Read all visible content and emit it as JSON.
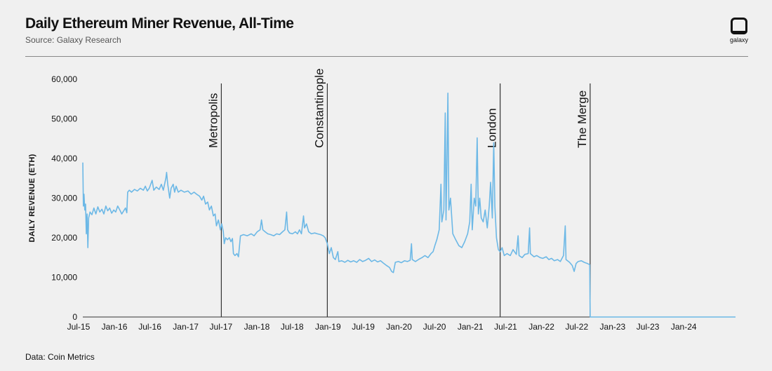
{
  "header": {
    "title": "Daily Ethereum Miner Revenue, All-Time",
    "source": "Source: Galaxy Research"
  },
  "logo": {
    "text": "galaxy"
  },
  "footer": {
    "text": "Data: Coin Metrics"
  },
  "colors": {
    "series": "#6cb8e6",
    "axis": "#333333",
    "background": "#f0f0f0"
  },
  "chart_data": {
    "type": "line",
    "title": "Daily Ethereum Miner Revenue, All-Time",
    "ylabel": "DAILY REVENUE (ETH)",
    "xlabel": "",
    "ylim": [
      0,
      60000
    ],
    "xlim": [
      "2015-07-30",
      "2024-09-30"
    ],
    "y_ticks": [
      "0",
      "10,000",
      "20,000",
      "30,000",
      "40,000",
      "50,000",
      "60,000"
    ],
    "x_ticks": [
      "Jul-15",
      "Jan-16",
      "Jul-16",
      "Jan-17",
      "Jul-17",
      "Jan-18",
      "Jul-18",
      "Jan-19",
      "Jul-19",
      "Jan-20",
      "Jul-20",
      "Jan-21",
      "Jul-21",
      "Jan-22",
      "Jul-22",
      "Jan-23",
      "Jul-23",
      "Jan-24"
    ],
    "grid": false,
    "events": [
      {
        "label": "Metropolis",
        "date": "2017-07-10"
      },
      {
        "label": "Constantinople",
        "date": "2019-01-05"
      },
      {
        "label": "London",
        "date": "2021-06-10"
      },
      {
        "label": "The Merge",
        "date": "2022-09-15"
      }
    ],
    "series": [
      {
        "name": "Daily Revenue (ETH)",
        "points": [
          [
            "2015-07-30",
            39000
          ],
          [
            "2015-08-02",
            28000
          ],
          [
            "2015-08-05",
            31000
          ],
          [
            "2015-08-09",
            27000
          ],
          [
            "2015-08-13",
            28500
          ],
          [
            "2015-08-17",
            21000
          ],
          [
            "2015-08-21",
            26000
          ],
          [
            "2015-08-25",
            17500
          ],
          [
            "2015-08-29",
            25000
          ],
          [
            "2015-09-05",
            26500
          ],
          [
            "2015-09-15",
            25800
          ],
          [
            "2015-09-25",
            27500
          ],
          [
            "2015-10-05",
            26000
          ],
          [
            "2015-10-15",
            27800
          ],
          [
            "2015-10-25",
            26500
          ],
          [
            "2015-11-05",
            27200
          ],
          [
            "2015-11-15",
            26000
          ],
          [
            "2015-11-25",
            28000
          ],
          [
            "2015-12-05",
            26800
          ],
          [
            "2015-12-15",
            27500
          ],
          [
            "2015-12-25",
            26200
          ],
          [
            "2016-01-05",
            27000
          ],
          [
            "2016-01-15",
            26500
          ],
          [
            "2016-01-25",
            28000
          ],
          [
            "2016-02-05",
            27000
          ],
          [
            "2016-02-15",
            26000
          ],
          [
            "2016-02-25",
            26800
          ],
          [
            "2016-03-05",
            27500
          ],
          [
            "2016-03-12",
            26300
          ],
          [
            "2016-03-16",
            31500
          ],
          [
            "2016-03-25",
            32000
          ],
          [
            "2016-04-05",
            31500
          ],
          [
            "2016-04-20",
            32200
          ],
          [
            "2016-05-05",
            31800
          ],
          [
            "2016-05-20",
            32500
          ],
          [
            "2016-06-05",
            32000
          ],
          [
            "2016-06-15",
            33000
          ],
          [
            "2016-06-25",
            31800
          ],
          [
            "2016-07-05",
            32500
          ],
          [
            "2016-07-20",
            34500
          ],
          [
            "2016-07-28",
            32000
          ],
          [
            "2016-08-10",
            32800
          ],
          [
            "2016-08-25",
            32200
          ],
          [
            "2016-09-05",
            33500
          ],
          [
            "2016-09-15",
            32000
          ],
          [
            "2016-09-28",
            35000
          ],
          [
            "2016-10-02",
            36500
          ],
          [
            "2016-10-08",
            33500
          ],
          [
            "2016-10-18",
            30000
          ],
          [
            "2016-10-25",
            32500
          ],
          [
            "2016-11-05",
            33500
          ],
          [
            "2016-11-12",
            31500
          ],
          [
            "2016-11-20",
            33000
          ],
          [
            "2016-12-01",
            31500
          ],
          [
            "2016-12-15",
            32000
          ],
          [
            "2017-01-01",
            31500
          ],
          [
            "2017-01-20",
            31800
          ],
          [
            "2017-02-05",
            31000
          ],
          [
            "2017-02-20",
            31500
          ],
          [
            "2017-03-05",
            31000
          ],
          [
            "2017-03-20",
            30500
          ],
          [
            "2017-04-01",
            29500
          ],
          [
            "2017-04-10",
            30500
          ],
          [
            "2017-04-20",
            28500
          ],
          [
            "2017-05-01",
            29000
          ],
          [
            "2017-05-10",
            27000
          ],
          [
            "2017-05-20",
            28000
          ],
          [
            "2017-05-30",
            25500
          ],
          [
            "2017-06-08",
            26000
          ],
          [
            "2017-06-15",
            23000
          ],
          [
            "2017-06-25",
            24500
          ],
          [
            "2017-07-05",
            22000
          ],
          [
            "2017-07-12",
            23500
          ],
          [
            "2017-07-20",
            21500
          ],
          [
            "2017-07-25",
            18500
          ],
          [
            "2017-08-01",
            20000
          ],
          [
            "2017-08-10",
            19500
          ],
          [
            "2017-08-20",
            20000
          ],
          [
            "2017-08-28",
            19000
          ],
          [
            "2017-09-05",
            19800
          ],
          [
            "2017-09-10",
            16000
          ],
          [
            "2017-09-18",
            15500
          ],
          [
            "2017-09-28",
            16000
          ],
          [
            "2017-10-06",
            15200
          ],
          [
            "2017-10-16",
            20500
          ],
          [
            "2017-11-01",
            20800
          ],
          [
            "2017-11-20",
            20500
          ],
          [
            "2017-12-10",
            21000
          ],
          [
            "2017-12-25",
            20500
          ],
          [
            "2018-01-10",
            21500
          ],
          [
            "2018-01-25",
            22000
          ],
          [
            "2018-02-01",
            24500
          ],
          [
            "2018-02-08",
            22000
          ],
          [
            "2018-02-20",
            21500
          ],
          [
            "2018-03-05",
            21000
          ],
          [
            "2018-03-20",
            20800
          ],
          [
            "2018-04-05",
            20500
          ],
          [
            "2018-04-20",
            21000
          ],
          [
            "2018-05-05",
            20800
          ],
          [
            "2018-05-20",
            21500
          ],
          [
            "2018-06-01",
            22000
          ],
          [
            "2018-06-10",
            26500
          ],
          [
            "2018-06-15",
            22000
          ],
          [
            "2018-06-25",
            21200
          ],
          [
            "2018-07-10",
            21000
          ],
          [
            "2018-07-25",
            21500
          ],
          [
            "2018-08-05",
            21000
          ],
          [
            "2018-08-15",
            22000
          ],
          [
            "2018-08-25",
            21000
          ],
          [
            "2018-09-05",
            25500
          ],
          [
            "2018-09-10",
            22500
          ],
          [
            "2018-09-20",
            23500
          ],
          [
            "2018-10-01",
            21500
          ],
          [
            "2018-10-15",
            21000
          ],
          [
            "2018-11-01",
            21200
          ],
          [
            "2018-11-15",
            21000
          ],
          [
            "2018-12-01",
            20800
          ],
          [
            "2018-12-15",
            20500
          ],
          [
            "2018-12-25",
            20000
          ],
          [
            "2019-01-05",
            18500
          ],
          [
            "2019-01-15",
            16000
          ],
          [
            "2019-01-25",
            17500
          ],
          [
            "2019-02-05",
            15000
          ],
          [
            "2019-02-15",
            14500
          ],
          [
            "2019-02-28",
            16500
          ],
          [
            "2019-03-05",
            14000
          ],
          [
            "2019-03-20",
            14200
          ],
          [
            "2019-04-05",
            13800
          ],
          [
            "2019-04-20",
            14300
          ],
          [
            "2019-05-05",
            13900
          ],
          [
            "2019-05-20",
            14200
          ],
          [
            "2019-06-05",
            13800
          ],
          [
            "2019-06-20",
            14500
          ],
          [
            "2019-07-05",
            14000
          ],
          [
            "2019-07-20",
            14300
          ],
          [
            "2019-08-05",
            14800
          ],
          [
            "2019-08-20",
            14000
          ],
          [
            "2019-09-05",
            14400
          ],
          [
            "2019-09-20",
            13900
          ],
          [
            "2019-10-05",
            14200
          ],
          [
            "2019-10-20",
            13600
          ],
          [
            "2019-11-05",
            13000
          ],
          [
            "2019-11-20",
            12500
          ],
          [
            "2019-12-01",
            11500
          ],
          [
            "2019-12-10",
            11200
          ],
          [
            "2019-12-20",
            13800
          ],
          [
            "2020-01-05",
            14000
          ],
          [
            "2020-01-20",
            13700
          ],
          [
            "2020-02-05",
            14200
          ],
          [
            "2020-02-20",
            14000
          ],
          [
            "2020-03-05",
            14300
          ],
          [
            "2020-03-12",
            18500
          ],
          [
            "2020-03-16",
            14500
          ],
          [
            "2020-04-01",
            14000
          ],
          [
            "2020-04-20",
            14600
          ],
          [
            "2020-05-05",
            15000
          ],
          [
            "2020-05-20",
            15500
          ],
          [
            "2020-06-05",
            15000
          ],
          [
            "2020-06-20",
            16000
          ],
          [
            "2020-07-01",
            16500
          ],
          [
            "2020-07-10",
            18000
          ],
          [
            "2020-07-20",
            19500
          ],
          [
            "2020-08-01",
            22000
          ],
          [
            "2020-08-10",
            33500
          ],
          [
            "2020-08-15",
            24000
          ],
          [
            "2020-08-25",
            27000
          ],
          [
            "2020-09-01",
            51500
          ],
          [
            "2020-09-05",
            24500
          ],
          [
            "2020-09-10",
            40000
          ],
          [
            "2020-09-15",
            56500
          ],
          [
            "2020-09-20",
            27000
          ],
          [
            "2020-09-28",
            30000
          ],
          [
            "2020-10-10",
            21000
          ],
          [
            "2020-10-25",
            19500
          ],
          [
            "2020-11-10",
            18000
          ],
          [
            "2020-11-25",
            17500
          ],
          [
            "2020-12-10",
            19000
          ],
          [
            "2020-12-25",
            21000
          ],
          [
            "2021-01-05",
            24000
          ],
          [
            "2021-01-12",
            33500
          ],
          [
            "2021-01-18",
            22000
          ],
          [
            "2021-01-28",
            30000
          ],
          [
            "2021-02-05",
            28000
          ],
          [
            "2021-02-12",
            45200
          ],
          [
            "2021-02-18",
            26000
          ],
          [
            "2021-02-25",
            30000
          ],
          [
            "2021-03-05",
            25000
          ],
          [
            "2021-03-15",
            24000
          ],
          [
            "2021-03-25",
            27000
          ],
          [
            "2021-04-05",
            22500
          ],
          [
            "2021-04-15",
            28000
          ],
          [
            "2021-04-22",
            34000
          ],
          [
            "2021-05-01",
            25000
          ],
          [
            "2021-05-08",
            44000
          ],
          [
            "2021-05-14",
            28000
          ],
          [
            "2021-05-22",
            20000
          ],
          [
            "2021-06-01",
            17000
          ],
          [
            "2021-06-10",
            16500
          ],
          [
            "2021-06-20",
            17500
          ],
          [
            "2021-07-01",
            15500
          ],
          [
            "2021-07-15",
            16000
          ],
          [
            "2021-08-01",
            15500
          ],
          [
            "2021-08-15",
            17000
          ],
          [
            "2021-09-01",
            15800
          ],
          [
            "2021-09-10",
            20500
          ],
          [
            "2021-09-15",
            15500
          ],
          [
            "2021-10-01",
            15000
          ],
          [
            "2021-10-15",
            15800
          ],
          [
            "2021-11-01",
            16000
          ],
          [
            "2021-11-08",
            22500
          ],
          [
            "2021-11-12",
            16000
          ],
          [
            "2021-12-01",
            15200
          ],
          [
            "2021-12-15",
            15500
          ],
          [
            "2022-01-01",
            15000
          ],
          [
            "2022-01-15",
            14800
          ],
          [
            "2022-02-01",
            15200
          ],
          [
            "2022-02-15",
            14500
          ],
          [
            "2022-03-01",
            14800
          ],
          [
            "2022-03-15",
            14200
          ],
          [
            "2022-04-01",
            14500
          ],
          [
            "2022-04-15",
            14000
          ],
          [
            "2022-05-01",
            15500
          ],
          [
            "2022-05-10",
            23000
          ],
          [
            "2022-05-14",
            14500
          ],
          [
            "2022-06-01",
            13800
          ],
          [
            "2022-06-15",
            13000
          ],
          [
            "2022-06-25",
            11500
          ],
          [
            "2022-07-05",
            13500
          ],
          [
            "2022-07-15",
            14000
          ],
          [
            "2022-08-01",
            14200
          ],
          [
            "2022-08-15",
            13800
          ],
          [
            "2022-09-01",
            13500
          ],
          [
            "2022-09-13",
            13200
          ],
          [
            "2022-09-15",
            0
          ],
          [
            "2023-01-01",
            0
          ],
          [
            "2024-01-01",
            0
          ],
          [
            "2024-09-30",
            0
          ]
        ]
      }
    ]
  }
}
